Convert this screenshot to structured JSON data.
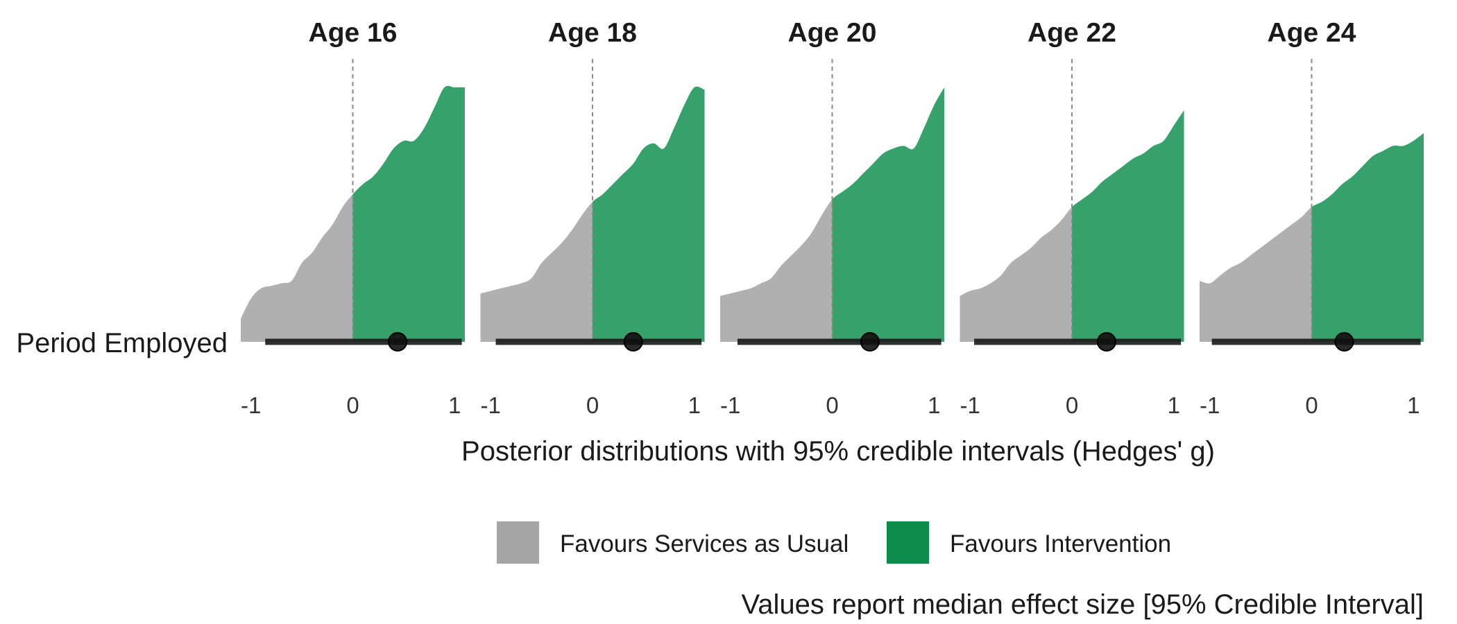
{
  "chart_data": {
    "type": "area",
    "row_label": "Period Employed",
    "xlabel": "Posterior distributions with 95% credible intervals (Hedges' g)",
    "xlim": [
      -1.1,
      1.1
    ],
    "x_ticks": [
      -1,
      0,
      1
    ],
    "x_tick_labels": [
      "-1",
      "0",
      "1"
    ],
    "reference_line_x": 0,
    "caption": "Values report median effect size [95% Credible Interval]",
    "legend": [
      {
        "label": "Favours Services as Usual",
        "color": "#a6a5a6"
      },
      {
        "label": "Favours Intervention",
        "color": "#0b8c4a"
      }
    ],
    "density_colors": {
      "negative": "#b1b0b1",
      "positive": "#36a16b"
    },
    "interval_color": "#1a1a1a",
    "panels": [
      {
        "title": "Age 16",
        "median": 0.44,
        "ci": [
          -0.86,
          1.07
        ],
        "density": {
          "x": [
            -1.1,
            -1.0,
            -0.9,
            -0.8,
            -0.7,
            -0.6,
            -0.5,
            -0.4,
            -0.3,
            -0.2,
            -0.1,
            0.0,
            0.1,
            0.2,
            0.3,
            0.4,
            0.5,
            0.6,
            0.7,
            0.8,
            0.9,
            1.0,
            1.1
          ],
          "y": [
            0.09,
            0.17,
            0.21,
            0.22,
            0.23,
            0.24,
            0.31,
            0.35,
            0.41,
            0.46,
            0.53,
            0.58,
            0.62,
            0.65,
            0.7,
            0.76,
            0.79,
            0.79,
            0.84,
            0.92,
            1.0,
            1.0,
            1.0
          ]
        }
      },
      {
        "title": "Age 18",
        "median": 0.4,
        "ci": [
          -0.95,
          1.07
        ],
        "density": {
          "x": [
            -1.1,
            -1.0,
            -0.9,
            -0.8,
            -0.7,
            -0.6,
            -0.5,
            -0.4,
            -0.3,
            -0.2,
            -0.1,
            0.0,
            0.1,
            0.2,
            0.3,
            0.4,
            0.5,
            0.6,
            0.7,
            0.8,
            0.9,
            1.0,
            1.1
          ],
          "y": [
            0.19,
            0.2,
            0.21,
            0.22,
            0.23,
            0.25,
            0.31,
            0.35,
            0.39,
            0.44,
            0.5,
            0.55,
            0.58,
            0.62,
            0.66,
            0.7,
            0.76,
            0.78,
            0.76,
            0.84,
            0.93,
            1.0,
            0.99
          ]
        }
      },
      {
        "title": "Age 20",
        "median": 0.37,
        "ci": [
          -0.93,
          1.07
        ],
        "density": {
          "x": [
            -1.1,
            -1.0,
            -0.9,
            -0.8,
            -0.7,
            -0.6,
            -0.5,
            -0.4,
            -0.3,
            -0.2,
            -0.1,
            0.0,
            0.1,
            0.2,
            0.3,
            0.4,
            0.5,
            0.6,
            0.7,
            0.8,
            0.9,
            1.0,
            1.1
          ],
          "y": [
            0.18,
            0.19,
            0.2,
            0.21,
            0.23,
            0.25,
            0.3,
            0.34,
            0.38,
            0.43,
            0.5,
            0.56,
            0.59,
            0.62,
            0.66,
            0.7,
            0.74,
            0.76,
            0.77,
            0.76,
            0.84,
            0.93,
            1.0
          ]
        }
      },
      {
        "title": "Age 22",
        "median": 0.34,
        "ci": [
          -0.96,
          1.07
        ],
        "density": {
          "x": [
            -1.1,
            -1.0,
            -0.9,
            -0.8,
            -0.7,
            -0.6,
            -0.5,
            -0.4,
            -0.3,
            -0.2,
            -0.1,
            0.0,
            0.1,
            0.2,
            0.3,
            0.4,
            0.5,
            0.6,
            0.7,
            0.8,
            0.9,
            1.0,
            1.1
          ],
          "y": [
            0.18,
            0.2,
            0.21,
            0.23,
            0.26,
            0.31,
            0.34,
            0.37,
            0.41,
            0.44,
            0.48,
            0.53,
            0.56,
            0.59,
            0.63,
            0.66,
            0.69,
            0.72,
            0.74,
            0.77,
            0.79,
            0.85,
            0.91
          ]
        }
      },
      {
        "title": "Age 24",
        "median": 0.32,
        "ci": [
          -0.98,
          1.07
        ],
        "density": {
          "x": [
            -1.1,
            -1.0,
            -0.9,
            -0.8,
            -0.7,
            -0.6,
            -0.5,
            -0.4,
            -0.3,
            -0.2,
            -0.1,
            0.0,
            0.1,
            0.2,
            0.3,
            0.4,
            0.5,
            0.6,
            0.7,
            0.8,
            0.9,
            1.0,
            1.1
          ],
          "y": [
            0.24,
            0.23,
            0.26,
            0.29,
            0.31,
            0.34,
            0.37,
            0.4,
            0.43,
            0.46,
            0.49,
            0.53,
            0.55,
            0.58,
            0.62,
            0.65,
            0.69,
            0.73,
            0.75,
            0.77,
            0.77,
            0.79,
            0.82
          ]
        }
      }
    ]
  }
}
